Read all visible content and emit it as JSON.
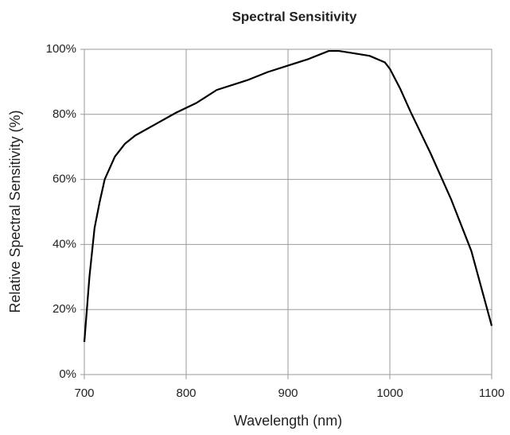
{
  "chart_data": {
    "type": "line",
    "title": "Spectral Sensitivity",
    "x_label": "Wavelength (nm)",
    "y_label": "Relative Spectral Sensitivity (%)",
    "x": [
      700,
      705,
      710,
      715,
      720,
      730,
      740,
      750,
      770,
      790,
      810,
      830,
      860,
      880,
      900,
      920,
      940,
      950,
      960,
      980,
      995,
      1000,
      1010,
      1020,
      1040,
      1060,
      1080,
      1100
    ],
    "values": [
      10,
      30,
      45,
      53,
      60,
      67,
      71,
      73.5,
      77,
      80.5,
      83.5,
      87.5,
      90.5,
      93,
      95,
      97,
      99.5,
      99.5,
      99,
      98,
      96,
      94,
      88,
      81,
      68,
      54,
      38,
      15
    ],
    "color": "#000000",
    "xlim": [
      700,
      1100
    ],
    "xticks": [
      700,
      800,
      900,
      1000,
      1100
    ],
    "ylim": [
      0,
      100
    ],
    "yticks": [
      {
        "value": 0,
        "label": "0%"
      },
      {
        "value": 20,
        "label": "20%"
      },
      {
        "value": 40,
        "label": "40%"
      },
      {
        "value": 60,
        "label": "60%"
      },
      {
        "value": 80,
        "label": "80%"
      },
      {
        "value": 100,
        "label": "100%"
      }
    ],
    "grid": true
  }
}
